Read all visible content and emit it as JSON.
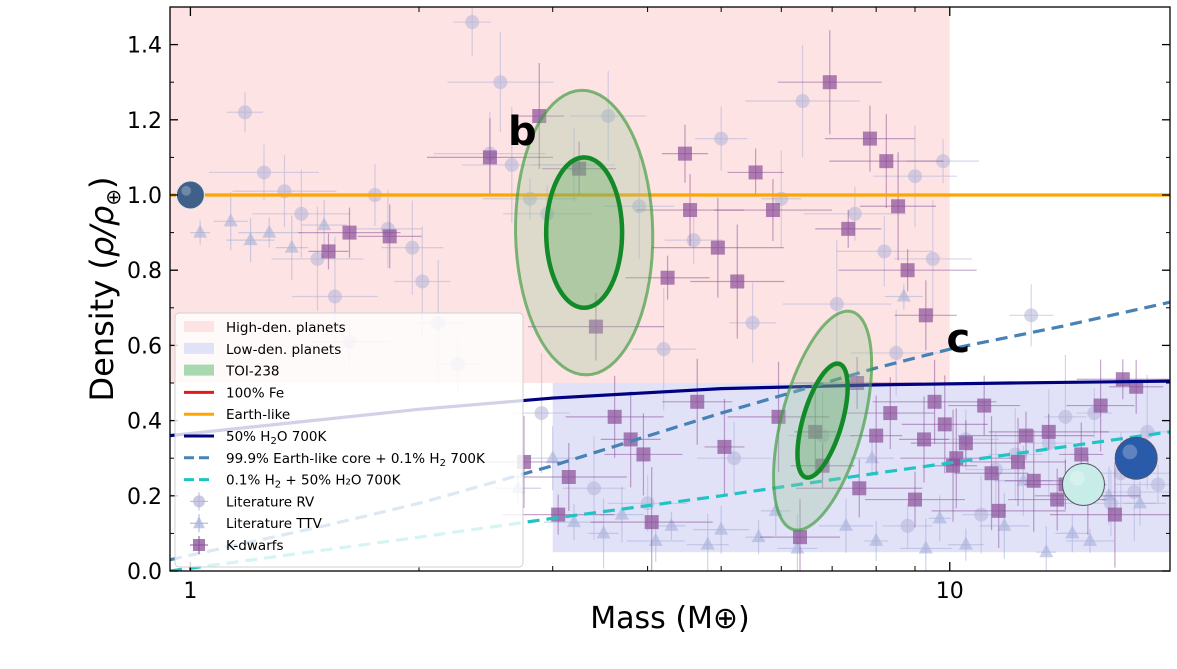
{
  "chart_data": {
    "type": "scatter",
    "title": "",
    "xlabel": "Mass (M⊕)",
    "ylabel_main": "Density (",
    "ylabel_rho": "ρ/ρ",
    "ylabel_sub": "⊕",
    "ylabel_close": ")",
    "xscale": "log",
    "xlim": [
      0.94,
      19.5
    ],
    "ylim": [
      0.0,
      1.5
    ],
    "x_ticks": [
      1,
      10
    ],
    "x_tick_labels": [
      "1",
      "10"
    ],
    "y_ticks": [
      0.0,
      0.2,
      0.4,
      0.6,
      0.8,
      1.0,
      1.2,
      1.4
    ],
    "y_tick_labels": [
      "0.0",
      "0.2",
      "0.4",
      "0.6",
      "0.8",
      "1.0",
      "1.2",
      "1.4"
    ],
    "regions": [
      {
        "name": "High-den. planets",
        "x": [
          0.94,
          10
        ],
        "y": [
          0.5,
          1.5
        ],
        "color": "#fde3e3"
      },
      {
        "name": "Low-den. planets",
        "x": [
          3,
          19.5
        ],
        "y": [
          0.05,
          0.5
        ],
        "color": "#e1e1f8"
      }
    ],
    "ellipses": [
      {
        "planet": "b",
        "cx": 3.3,
        "cy": 0.9,
        "inner": {
          "rx": 0.05,
          "ry": 0.2,
          "angle": 0.28
        },
        "outer": {
          "rx": 0.09,
          "ry": 0.38,
          "angle": 0.28
        }
      },
      {
        "planet": "c",
        "cx": 6.8,
        "cy": 0.4,
        "inner": {
          "rx": 0.045,
          "ry": 0.09,
          "angle": 0.9
        },
        "outer": {
          "rx": 0.085,
          "ry": 0.19,
          "angle": 0.9
        }
      }
    ],
    "planet_labels": [
      {
        "text": "b",
        "x": 2.62,
        "y": 1.17
      },
      {
        "text": "c",
        "x": 9.9,
        "y": 0.62
      }
    ],
    "series": [
      {
        "name": "100% Fe",
        "color": "#e31a1c",
        "style": "solid",
        "x": [],
        "y": []
      },
      {
        "name": "Earth-like",
        "color": "#ffa500",
        "style": "solid",
        "x": [
          0.94,
          19.5
        ],
        "y": [
          1.0,
          1.0
        ]
      },
      {
        "name": "50% H₂O 700K",
        "color": "#000080",
        "style": "solid",
        "x": [
          0.94,
          2,
          3,
          5,
          8,
          12,
          19.5
        ],
        "y": [
          0.36,
          0.43,
          0.46,
          0.485,
          0.495,
          0.5,
          0.505
        ]
      },
      {
        "name": "99.9% Earth-like core + 0.1% H₂ 700K",
        "color": "#4682b4",
        "style": "dashed",
        "x": [
          0.94,
          1.5,
          2,
          3,
          5,
          8,
          10,
          14,
          19.5
        ],
        "y": [
          0.03,
          0.12,
          0.18,
          0.28,
          0.42,
          0.54,
          0.59,
          0.65,
          0.715
        ]
      },
      {
        "name": "0.1% H₂ + 50% H₂O 700K",
        "color": "#20c4c4",
        "style": "dashed",
        "x": [
          0.94,
          2,
          3,
          5,
          8,
          12,
          19.5
        ],
        "y": [
          0.0,
          0.09,
          0.14,
          0.2,
          0.26,
          0.31,
          0.37
        ]
      }
    ],
    "scatter_rv": {
      "x": [
        1.18,
        1.25,
        1.33,
        1.4,
        1.47,
        1.55,
        1.62,
        1.75,
        1.82,
        1.96,
        2.02,
        2.12,
        2.25,
        2.35,
        2.48,
        2.56,
        2.65,
        2.8,
        2.95,
        3.2,
        3.55,
        3.9,
        4.2,
        4.6,
        5.0,
        5.5,
        6.0,
        6.4,
        7.1,
        7.5,
        8.2,
        8.5,
        9.0,
        9.5,
        9.8,
        10.5,
        11.5,
        12.2,
        13.5,
        14.2,
        15.5,
        16.3,
        16.8,
        17.5,
        18.2,
        18.8,
        4.0,
        5.2,
        6.8,
        3.4,
        2.9,
        8.8,
        12.8,
        11.0
      ],
      "y": [
        1.22,
        1.06,
        1.01,
        0.95,
        0.83,
        0.73,
        0.61,
        1.0,
        0.91,
        0.86,
        0.77,
        0.66,
        0.55,
        1.46,
        1.11,
        1.3,
        1.08,
        0.99,
        0.95,
        1.08,
        1.21,
        0.97,
        0.59,
        0.88,
        1.15,
        0.66,
        0.99,
        1.25,
        0.71,
        0.95,
        0.85,
        0.58,
        1.05,
        0.83,
        1.09,
        0.35,
        0.27,
        0.31,
        0.34,
        0.41,
        0.42,
        0.18,
        0.26,
        0.21,
        0.37,
        0.23,
        0.18,
        0.3,
        0.36,
        0.22,
        0.42,
        0.12,
        0.68,
        0.15
      ],
      "color": "#b4b4d8"
    },
    "scatter_ttv": {
      "x": [
        1.03,
        1.13,
        1.2,
        1.27,
        1.36,
        1.5,
        3.2,
        3.5,
        3.7,
        4.1,
        4.3,
        4.8,
        5.0,
        5.6,
        6.3,
        7.3,
        8.0,
        8.7,
        9.3,
        9.7,
        10.5,
        11.8,
        13.4,
        14.5,
        15.3,
        16.2,
        17.8,
        2.7,
        3.0,
        5.9,
        7.9,
        12.5
      ],
      "y": [
        0.9,
        0.93,
        0.88,
        0.9,
        0.86,
        0.92,
        0.13,
        0.1,
        0.15,
        0.08,
        0.12,
        0.07,
        0.11,
        0.09,
        0.06,
        0.12,
        0.08,
        0.73,
        0.06,
        0.14,
        0.07,
        0.12,
        0.05,
        0.1,
        0.08,
        0.2,
        0.18,
        0.22,
        0.3,
        0.16,
        0.3,
        0.24
      ],
      "color": "#a6b0d8"
    },
    "scatter_kdwarfs": {
      "x": [
        1.52,
        1.62,
        1.83,
        2.48,
        2.75,
        2.88,
        3.05,
        3.25,
        3.42,
        3.62,
        3.8,
        4.05,
        4.25,
        4.48,
        4.55,
        4.65,
        4.95,
        5.25,
        5.55,
        5.85,
        6.35,
        6.65,
        6.95,
        7.35,
        7.55,
        7.85,
        8.0,
        8.25,
        8.55,
        8.8,
        9.0,
        9.3,
        9.55,
        9.85,
        10.1,
        10.5,
        11.1,
        11.6,
        12.3,
        12.9,
        13.5,
        14.2,
        14.9,
        15.2,
        15.8,
        16.5,
        16.9,
        17.6,
        3.15,
        3.95,
        5.05,
        5.95,
        6.8,
        7.6,
        8.35,
        9.25,
        10.2,
        11.35,
        12.6,
        13.85
      ],
      "y": [
        0.85,
        0.9,
        0.89,
        1.1,
        0.29,
        1.21,
        0.15,
        1.07,
        0.65,
        0.41,
        0.35,
        0.13,
        0.78,
        1.11,
        0.96,
        0.45,
        0.86,
        0.77,
        1.06,
        0.96,
        0.09,
        0.37,
        1.3,
        0.91,
        0.5,
        1.15,
        0.36,
        1.09,
        0.97,
        0.8,
        0.19,
        0.68,
        0.45,
        0.39,
        0.28,
        0.34,
        0.44,
        0.16,
        0.29,
        0.24,
        0.37,
        0.23,
        0.31,
        0.2,
        0.44,
        0.15,
        0.51,
        0.49,
        0.25,
        0.31,
        0.33,
        0.41,
        0.28,
        0.22,
        0.42,
        0.35,
        0.3,
        0.26,
        0.36,
        0.19
      ],
      "color": "#8a4f98"
    },
    "planet_icons": [
      {
        "name": "Earth",
        "x": 1.0,
        "y": 1.0,
        "color": "#40608a"
      },
      {
        "name": "Uranus",
        "x": 15.0,
        "y": 0.23,
        "color": "#c8ece8"
      },
      {
        "name": "Neptune",
        "x": 17.6,
        "y": 0.3,
        "color": "#2a5aaa"
      }
    ],
    "legend": {
      "position": "lower-left",
      "entries": [
        {
          "label": "High-den. planets",
          "kind": "patch",
          "color": "#fde3e3"
        },
        {
          "label": "Low-den. planets",
          "kind": "patch",
          "color": "#e1e1f8"
        },
        {
          "label": "TOI-238",
          "kind": "patch",
          "color": "#a8d8b0"
        },
        {
          "label": "100% Fe",
          "kind": "line",
          "color": "#e31a1c"
        },
        {
          "label": "Earth-like",
          "kind": "line",
          "color": "#ffa500"
        },
        {
          "label_main": "50% H",
          "label_sub": "2",
          "label_rest": "O 700K",
          "kind": "line",
          "color": "#000080"
        },
        {
          "label_main": "99.9% Earth-like core + 0.1% H",
          "label_sub": "2",
          "label_rest": " 700K",
          "kind": "dash",
          "color": "#4682b4"
        },
        {
          "label_main": "0.1% H",
          "label_sub": "2",
          "label_rest": " + 50% H₂O 700K",
          "kind": "dash",
          "color": "#20c4c4"
        },
        {
          "label": "Literature RV",
          "kind": "marker-circle",
          "color": "#b4b4d8"
        },
        {
          "label": "Literature TTV",
          "kind": "marker-triangle",
          "color": "#a6b0d8"
        },
        {
          "label": "K-dwarfs",
          "kind": "marker-square",
          "color": "#8a4f98"
        }
      ]
    }
  }
}
